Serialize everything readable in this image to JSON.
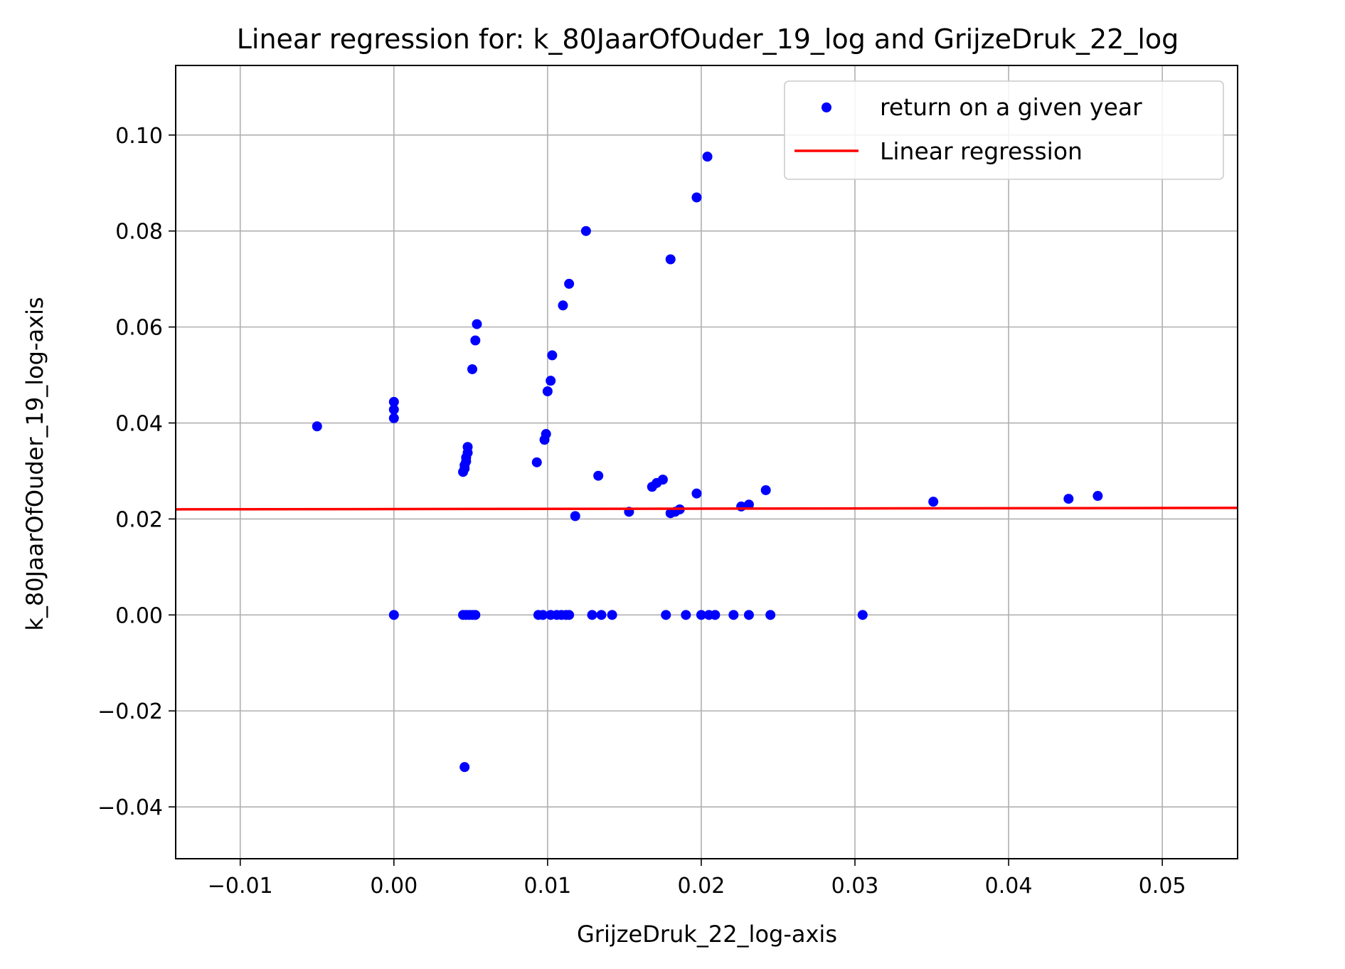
{
  "chart_data": {
    "type": "scatter",
    "title": "Linear regression for: k_80JaarOfOuder_19_log and GrijzeDruk_22_log",
    "xlabel": "GrijzeDruk_22_log-axis",
    "ylabel": "k_80JaarOfOuder_19_log-axis",
    "xlim": [
      -0.0142,
      0.0549
    ],
    "ylim": [
      -0.0508,
      0.1145
    ],
    "x_ticks": [
      -0.01,
      0.0,
      0.01,
      0.02,
      0.03,
      0.04,
      0.05
    ],
    "x_tick_labels": [
      "−0.01",
      "0.00",
      "0.01",
      "0.02",
      "0.03",
      "0.04",
      "0.05"
    ],
    "y_ticks": [
      -0.04,
      -0.02,
      0.0,
      0.02,
      0.04,
      0.06,
      0.08,
      0.1
    ],
    "y_tick_labels": [
      "−0.04",
      "−0.02",
      "0.00",
      "0.02",
      "0.04",
      "0.06",
      "0.08",
      "0.10"
    ],
    "grid": true,
    "legend_position": "top-right",
    "series": [
      {
        "name": "return on a given year",
        "kind": "scatter",
        "color": "#0000ff",
        "points": [
          [
            -0.005,
            0.0393
          ],
          [
            0.0,
            0.0444
          ],
          [
            0.0,
            0.0428
          ],
          [
            0.0,
            0.041
          ],
          [
            0.0,
            0.0
          ],
          [
            0.0045,
            0.0298
          ],
          [
            0.0046,
            0.0305
          ],
          [
            0.0046,
            0.0312
          ],
          [
            0.0047,
            0.032
          ],
          [
            0.0047,
            0.0328
          ],
          [
            0.0048,
            0.0338
          ],
          [
            0.0048,
            0.035
          ],
          [
            0.0046,
            -0.0317
          ],
          [
            0.0051,
            0.0512
          ],
          [
            0.0053,
            0.0572
          ],
          [
            0.0054,
            0.0606
          ],
          [
            0.0045,
            0.0
          ],
          [
            0.0047,
            0.0
          ],
          [
            0.0049,
            0.0
          ],
          [
            0.0051,
            0.0
          ],
          [
            0.0053,
            0.0
          ],
          [
            0.0093,
            0.0318
          ],
          [
            0.0098,
            0.0365
          ],
          [
            0.0099,
            0.0377
          ],
          [
            0.01,
            0.0466
          ],
          [
            0.0102,
            0.0488
          ],
          [
            0.0103,
            0.0541
          ],
          [
            0.011,
            0.0645
          ],
          [
            0.0114,
            0.069
          ],
          [
            0.0125,
            0.08
          ],
          [
            0.0118,
            0.0206
          ],
          [
            0.0133,
            0.029
          ],
          [
            0.0094,
            0.0
          ],
          [
            0.0097,
            0.0
          ],
          [
            0.0102,
            0.0
          ],
          [
            0.0106,
            0.0
          ],
          [
            0.0109,
            0.0
          ],
          [
            0.0112,
            0.0
          ],
          [
            0.0114,
            0.0
          ],
          [
            0.0129,
            0.0
          ],
          [
            0.0135,
            0.0
          ],
          [
            0.0142,
            0.0
          ],
          [
            0.0153,
            0.0215
          ],
          [
            0.0168,
            0.0267
          ],
          [
            0.0171,
            0.0275
          ],
          [
            0.0175,
            0.0282
          ],
          [
            0.018,
            0.0741
          ],
          [
            0.018,
            0.0212
          ],
          [
            0.0183,
            0.0215
          ],
          [
            0.0186,
            0.022
          ],
          [
            0.0197,
            0.087
          ],
          [
            0.0197,
            0.0253
          ],
          [
            0.0204,
            0.0955
          ],
          [
            0.0177,
            0.0
          ],
          [
            0.019,
            0.0
          ],
          [
            0.02,
            0.0
          ],
          [
            0.0205,
            0.0
          ],
          [
            0.0209,
            0.0
          ],
          [
            0.0221,
            0.0
          ],
          [
            0.0231,
            0.0
          ],
          [
            0.0245,
            0.0
          ],
          [
            0.0226,
            0.0226
          ],
          [
            0.0231,
            0.023
          ],
          [
            0.0242,
            0.026
          ],
          [
            0.0305,
            0.0
          ],
          [
            0.0351,
            0.0236
          ],
          [
            0.0439,
            0.0242
          ],
          [
            0.0458,
            0.0248
          ]
        ]
      },
      {
        "name": "Linear regression",
        "kind": "line",
        "color": "#ff0000",
        "points": [
          [
            -0.0142,
            0.022
          ],
          [
            0.0549,
            0.0223
          ]
        ]
      }
    ]
  }
}
